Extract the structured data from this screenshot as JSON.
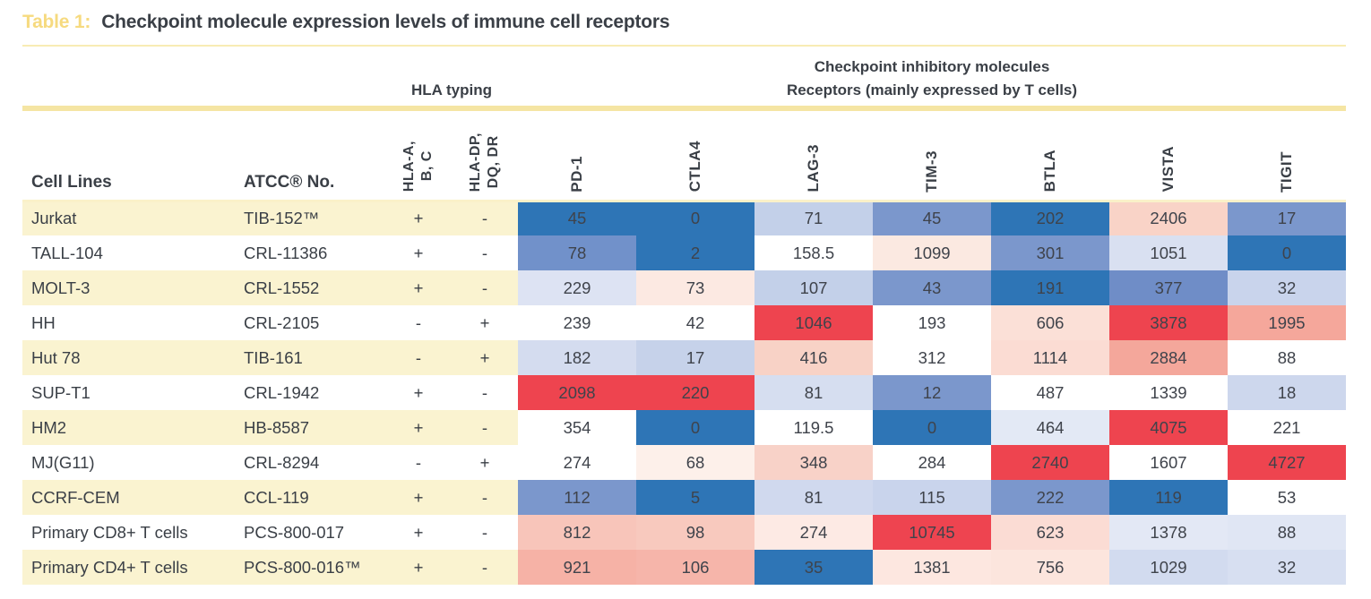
{
  "title": {
    "prefix": "Table 1:",
    "text": "Checkpoint molecule expression levels of immune cell receptors"
  },
  "group_headers": {
    "hla": "HLA typing",
    "checkpoint_line1": "Checkpoint inhibitory molecules",
    "checkpoint_line2": "Receptors (mainly expressed by T cells)"
  },
  "colors": {
    "accent_gold": "#F6DA7F",
    "band_yellow": "#F5E5A3",
    "row_stripe_yellow": "#FAF3D0",
    "heat_low_blue": "#2E75B6",
    "heat_high_red": "#EE444F",
    "text_dark": "#3A3F46"
  },
  "chart_data": {
    "type": "table",
    "title": "Checkpoint molecule expression levels of immune cell receptors",
    "columns": {
      "cell_lines": "Cell Lines",
      "atcc_no": "ATCC® No.",
      "hla_typing": [
        [
          "HLA-A,",
          "B, C"
        ],
        [
          "HLA-DP,",
          "DQ, DR"
        ]
      ],
      "receptors": [
        "PD-1",
        "CTLA4",
        "LAG-3",
        "TIM-3",
        "BTLA",
        "VISTA",
        "TIGIT"
      ]
    },
    "rows": [
      {
        "cell_line": "Jurkat",
        "atcc_no": "TIB-152™",
        "hla_abc": "+",
        "hla_dpdqdr": "-",
        "values": [
          "45",
          "0",
          "71",
          "45",
          "202",
          "2406",
          "17"
        ],
        "colors": [
          "#2E75B6",
          "#2E75B6",
          "#C3D0E9",
          "#7B97CC",
          "#2E75B6",
          "#F9D3C7",
          "#7B97CC"
        ]
      },
      {
        "cell_line": "TALL-104",
        "atcc_no": "CRL-11386",
        "hla_abc": "+",
        "hla_dpdqdr": "-",
        "values": [
          "78",
          "2",
          "158.5",
          "1099",
          "301",
          "1051",
          "0"
        ],
        "colors": [
          "#7191CA",
          "#2E75B6",
          "#FFFFFF",
          "#FBE9E1",
          "#7B97CC",
          "#D9E0F1",
          "#2E75B6"
        ]
      },
      {
        "cell_line": "MOLT-3",
        "atcc_no": "CRL-1552",
        "hla_abc": "+",
        "hla_dpdqdr": "-",
        "values": [
          "229",
          "73",
          "107",
          "43",
          "191",
          "377",
          "32"
        ],
        "colors": [
          "#DDE3F3",
          "#FCE9E2",
          "#C3D0E9",
          "#7B97CC",
          "#2E75B6",
          "#6F8DC7",
          "#C9D4EC"
        ]
      },
      {
        "cell_line": "HH",
        "atcc_no": "CRL-2105",
        "hla_abc": "-",
        "hla_dpdqdr": "+",
        "values": [
          "239",
          "42",
          "1046",
          "193",
          "606",
          "3878",
          "1995"
        ],
        "colors": [
          "#FFFFFF",
          "#FFFFFF",
          "#EE444F",
          "#FFFFFF",
          "#FBE0D7",
          "#EE444F",
          "#F5A79B"
        ]
      },
      {
        "cell_line": "Hut 78",
        "atcc_no": "TIB-161",
        "hla_abc": "-",
        "hla_dpdqdr": "+",
        "values": [
          "182",
          "17",
          "416",
          "312",
          "1114",
          "2884",
          "88"
        ],
        "colors": [
          "#D4DCEF",
          "#C6D2EA",
          "#F8D2C6",
          "#FFFFFF",
          "#FBDCD3",
          "#F4A79B",
          "#FFFFFF"
        ]
      },
      {
        "cell_line": "SUP-T1",
        "atcc_no": "CRL-1942",
        "hla_abc": "+",
        "hla_dpdqdr": "-",
        "values": [
          "2098",
          "220",
          "81",
          "12",
          "487",
          "1339",
          "18"
        ],
        "colors": [
          "#EE444F",
          "#EE444F",
          "#D6DEF0",
          "#7B97CC",
          "#FFFFFF",
          "#FFFFFF",
          "#CDD7ED"
        ]
      },
      {
        "cell_line": "HM2",
        "atcc_no": "HB-8587",
        "hla_abc": "+",
        "hla_dpdqdr": "-",
        "values": [
          "354",
          "0",
          "119.5",
          "0",
          "464",
          "4075",
          "221"
        ],
        "colors": [
          "#FFFFFF",
          "#2E75B6",
          "#FFFFFF",
          "#2E75B6",
          "#E3E9F5",
          "#EE444F",
          "#FFFFFF"
        ]
      },
      {
        "cell_line": "MJ(G11)",
        "atcc_no": "CRL-8294",
        "hla_abc": "-",
        "hla_dpdqdr": "+",
        "values": [
          "274",
          "68",
          "348",
          "284",
          "2740",
          "1607",
          "4727"
        ],
        "colors": [
          "#FFFFFF",
          "#FDF0EA",
          "#F8D2C8",
          "#FFFFFF",
          "#EE444F",
          "#FFFFFF",
          "#EE444F"
        ]
      },
      {
        "cell_line": "CCRF-CEM",
        "atcc_no": "CCL-119",
        "hla_abc": "+",
        "hla_dpdqdr": "-",
        "values": [
          "112",
          "5",
          "81",
          "115",
          "222",
          "119",
          "53"
        ],
        "colors": [
          "#7B97CC",
          "#2E75B6",
          "#D0D9EE",
          "#C9D4EC",
          "#7B97CC",
          "#2E75B6",
          "#FFFFFF"
        ]
      },
      {
        "cell_line": "Primary CD8+ T cells",
        "atcc_no": "PCS-800-017",
        "hla_abc": "+",
        "hla_dpdqdr": "-",
        "values": [
          "812",
          "98",
          "274",
          "10745",
          "623",
          "1378",
          "88"
        ],
        "colors": [
          "#F8C5BA",
          "#F8C9BE",
          "#FDEAE4",
          "#EE4450",
          "#FBDCD4",
          "#E3E8F5",
          "#E0E6F4"
        ]
      },
      {
        "cell_line": "Primary CD4+ T cells",
        "atcc_no": "PCS-800-016™",
        "hla_abc": "+",
        "hla_dpdqdr": "-",
        "values": [
          "921",
          "106",
          "35",
          "1381",
          "756",
          "1029",
          "32"
        ],
        "colors": [
          "#F6B2A6",
          "#F6B5AA",
          "#2E75B6",
          "#FDE7E0",
          "#FCE5DD",
          "#D2DBEF",
          "#D7DFF1"
        ]
      }
    ]
  }
}
